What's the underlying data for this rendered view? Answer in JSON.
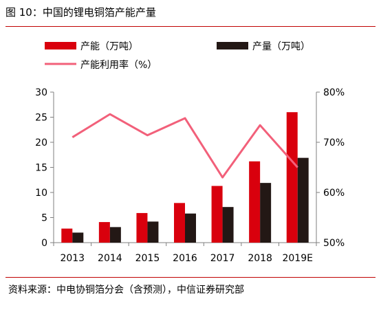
{
  "header": {
    "title": "图 10：中国的锂电铜箔产能产量"
  },
  "footer": {
    "source": "资料来源：中电协铜箔分会（含预测），中信证券研究部"
  },
  "colors": {
    "capacity": "#d9000d",
    "production": "#231815",
    "utilization": "#f2607a",
    "rule": "#c00000"
  },
  "chart_data": {
    "type": "bar",
    "categories": [
      "2013",
      "2014",
      "2015",
      "2016",
      "2017",
      "2018",
      "2019E"
    ],
    "series": [
      {
        "name": "产能（万吨）",
        "type": "bar",
        "axis": "left",
        "values": [
          2.8,
          4.1,
          5.9,
          7.9,
          11.3,
          16.2,
          26.0
        ]
      },
      {
        "name": "产量（万吨）",
        "type": "bar",
        "axis": "left",
        "values": [
          2.0,
          3.1,
          4.2,
          5.8,
          7.1,
          11.9,
          16.9
        ]
      },
      {
        "name": "产能利用率（%）",
        "type": "line",
        "axis": "right",
        "values": [
          71.0,
          75.6,
          71.4,
          74.8,
          63.0,
          73.4,
          65.0
        ]
      }
    ],
    "y_left": {
      "range": [
        0,
        30
      ],
      "ticks": [
        "0",
        "5",
        "10",
        "15",
        "20",
        "25",
        "30"
      ]
    },
    "y_right": {
      "range": [
        50,
        80
      ],
      "ticks": [
        "50%",
        "60%",
        "70%",
        "80%"
      ]
    },
    "legend": "top",
    "grid": false
  }
}
